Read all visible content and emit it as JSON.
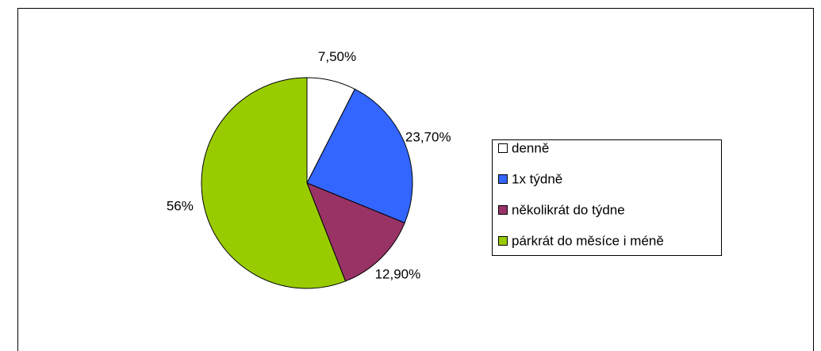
{
  "chart_data": {
    "type": "pie",
    "categories": [
      "denně",
      "1x týdně",
      "několikrát do týdne",
      "párkrát do měsíce i méně"
    ],
    "values": [
      7.5,
      23.7,
      12.9,
      56
    ],
    "value_labels": [
      "7,50%",
      "23,70%",
      "12,90%",
      "56%"
    ],
    "colors": [
      "#ffffff",
      "#3366ff",
      "#993366",
      "#99cc00"
    ],
    "legend": "right"
  }
}
